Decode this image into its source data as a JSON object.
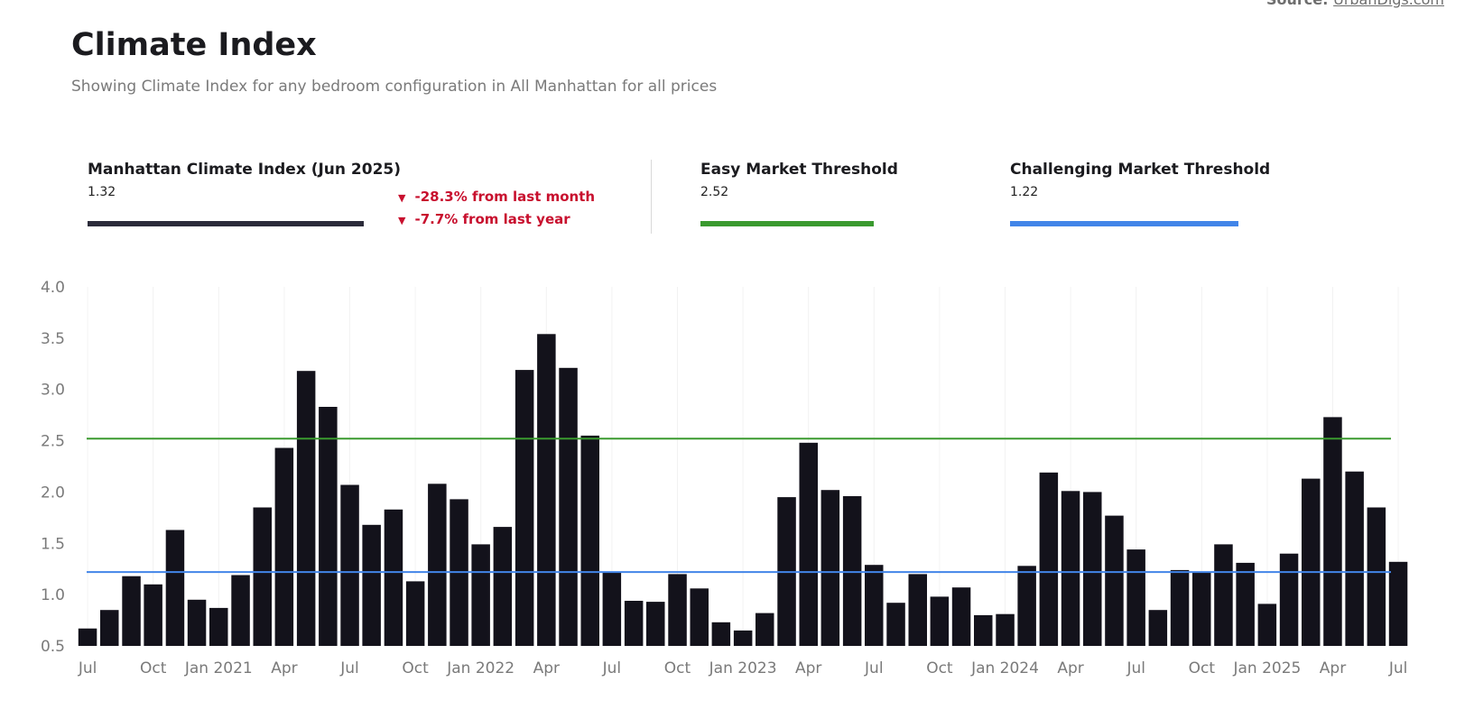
{
  "source": {
    "label": "Source:",
    "link_text": "UrbanDigs.com"
  },
  "title": "Climate Index",
  "subtitle": "Showing Climate Index for any bedroom configuration in All Manhattan for all prices",
  "stats": {
    "climate_index": {
      "label": "Manhattan Climate Index  (Jun 2025)",
      "value": "1.32",
      "color": "#2b2b3a"
    },
    "changes": [
      "-28.3% from last month",
      "-7.7% from last year"
    ],
    "easy": {
      "label": "Easy Market Threshold",
      "value": "2.52",
      "color": "#3a9a2f"
    },
    "challenging": {
      "label": "Challenging Market Threshold",
      "value": "1.22",
      "color": "#4285e8"
    }
  },
  "colors": {
    "bars": "#13121b",
    "easy_line": "#3a9a2f",
    "challenging_line": "#4285e8",
    "grid": "#f2f2f2",
    "change_down": "#c8102e"
  },
  "chart_data": {
    "type": "bar",
    "ylim": [
      0.5,
      4.0
    ],
    "yticks": [
      "0.5",
      "1.0",
      "1.5",
      "2.0",
      "2.5",
      "3.0",
      "3.5",
      "4.0"
    ],
    "x_tick_labels": [
      {
        "index": 0,
        "label": "Jul"
      },
      {
        "index": 3,
        "label": "Oct"
      },
      {
        "index": 6,
        "label": "Jan 2021"
      },
      {
        "index": 9,
        "label": "Apr"
      },
      {
        "index": 12,
        "label": "Jul"
      },
      {
        "index": 15,
        "label": "Oct"
      },
      {
        "index": 18,
        "label": "Jan 2022"
      },
      {
        "index": 21,
        "label": "Apr"
      },
      {
        "index": 24,
        "label": "Jul"
      },
      {
        "index": 27,
        "label": "Oct"
      },
      {
        "index": 30,
        "label": "Jan 2023"
      },
      {
        "index": 33,
        "label": "Apr"
      },
      {
        "index": 36,
        "label": "Jul"
      },
      {
        "index": 39,
        "label": "Oct"
      },
      {
        "index": 42,
        "label": "Jan 2024"
      },
      {
        "index": 45,
        "label": "Apr"
      },
      {
        "index": 48,
        "label": "Jul"
      },
      {
        "index": 51,
        "label": "Oct"
      },
      {
        "index": 54,
        "label": "Jan 2025"
      },
      {
        "index": 57,
        "label": "Apr"
      },
      {
        "index": 60,
        "label": "Jul"
      }
    ],
    "values": [
      0.67,
      0.85,
      1.18,
      1.1,
      1.63,
      0.95,
      0.87,
      1.19,
      1.85,
      2.43,
      3.18,
      2.83,
      2.07,
      1.68,
      1.83,
      1.13,
      2.08,
      1.93,
      1.49,
      1.66,
      3.19,
      3.54,
      3.21,
      2.55,
      1.22,
      0.94,
      0.93,
      1.2,
      1.06,
      0.73,
      0.65,
      0.82,
      1.95,
      2.48,
      2.02,
      1.96,
      1.29,
      0.92,
      1.2,
      0.98,
      1.07,
      0.8,
      0.81,
      1.28,
      2.19,
      2.01,
      2.0,
      1.77,
      1.44,
      0.85,
      1.24,
      1.22,
      1.49,
      1.31,
      0.91,
      1.4,
      2.13,
      2.73,
      2.2,
      1.85,
      1.32
    ],
    "reference_lines": [
      {
        "value": 2.52
      },
      {
        "value": 1.22
      }
    ]
  }
}
